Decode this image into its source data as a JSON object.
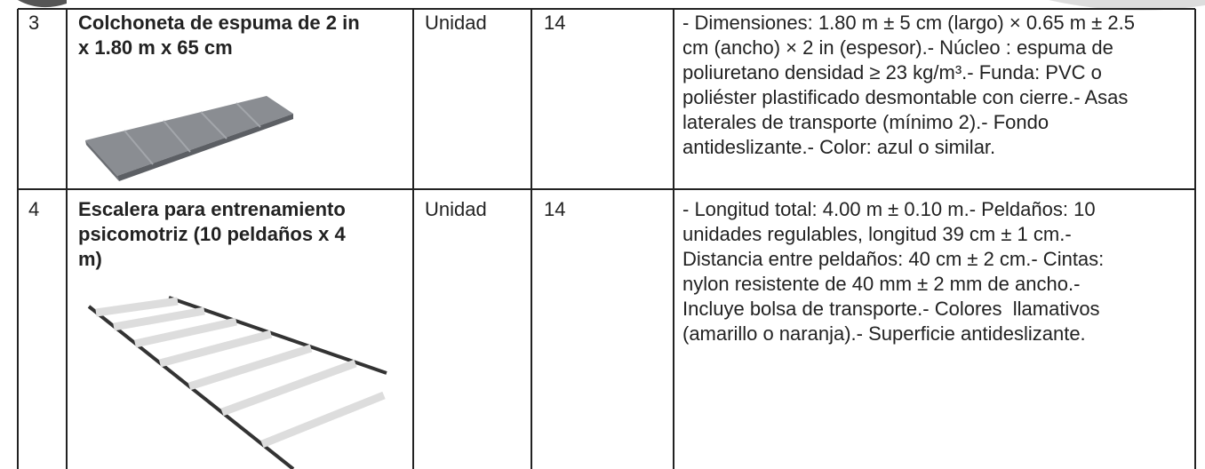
{
  "table": {
    "rows": [
      {
        "number": "3",
        "name": [
          "Colchoneta de espuma de 2 in",
          "x 1.80 m x 65 cm"
        ],
        "unit": "Unidad",
        "quantity": "14",
        "specs": [
          "- Dimensiones: 1.80 m ± 5 cm (largo) × 0.65 m ± 2.5",
          "cm (ancho) × 2 in (espesor).- Núcleo : espuma de",
          "poliuretano densidad ≥ 23 kg/m³.- Funda: PVC o",
          "poliéster plastificado desmontable con cierre.- Asas",
          "laterales de transporte (mínimo 2).- Fondo",
          "antideslizante.- Color: azul o similar."
        ]
      },
      {
        "number": "4",
        "name": [
          "Escalera para entrenamiento",
          "psicomotriz (10 peldaños x 4",
          "m)"
        ],
        "unit": "Unidad",
        "quantity": "14",
        "specs": [
          "- Longitud total: 4.00 m ± 0.10 m.- Peldaños: 10",
          "unidades regulables, longitud 39 cm ± 1 cm.-",
          "Distancia entre peldaños: 40 cm ± 2 cm.- Cintas:",
          "nylon resistente de 40 mm ± 2 mm de ancho.-",
          "Incluye bolsa de transporte.- Colores  llamativos",
          "(amarillo o naranja).- Superficie antideslizante."
        ]
      }
    ]
  }
}
